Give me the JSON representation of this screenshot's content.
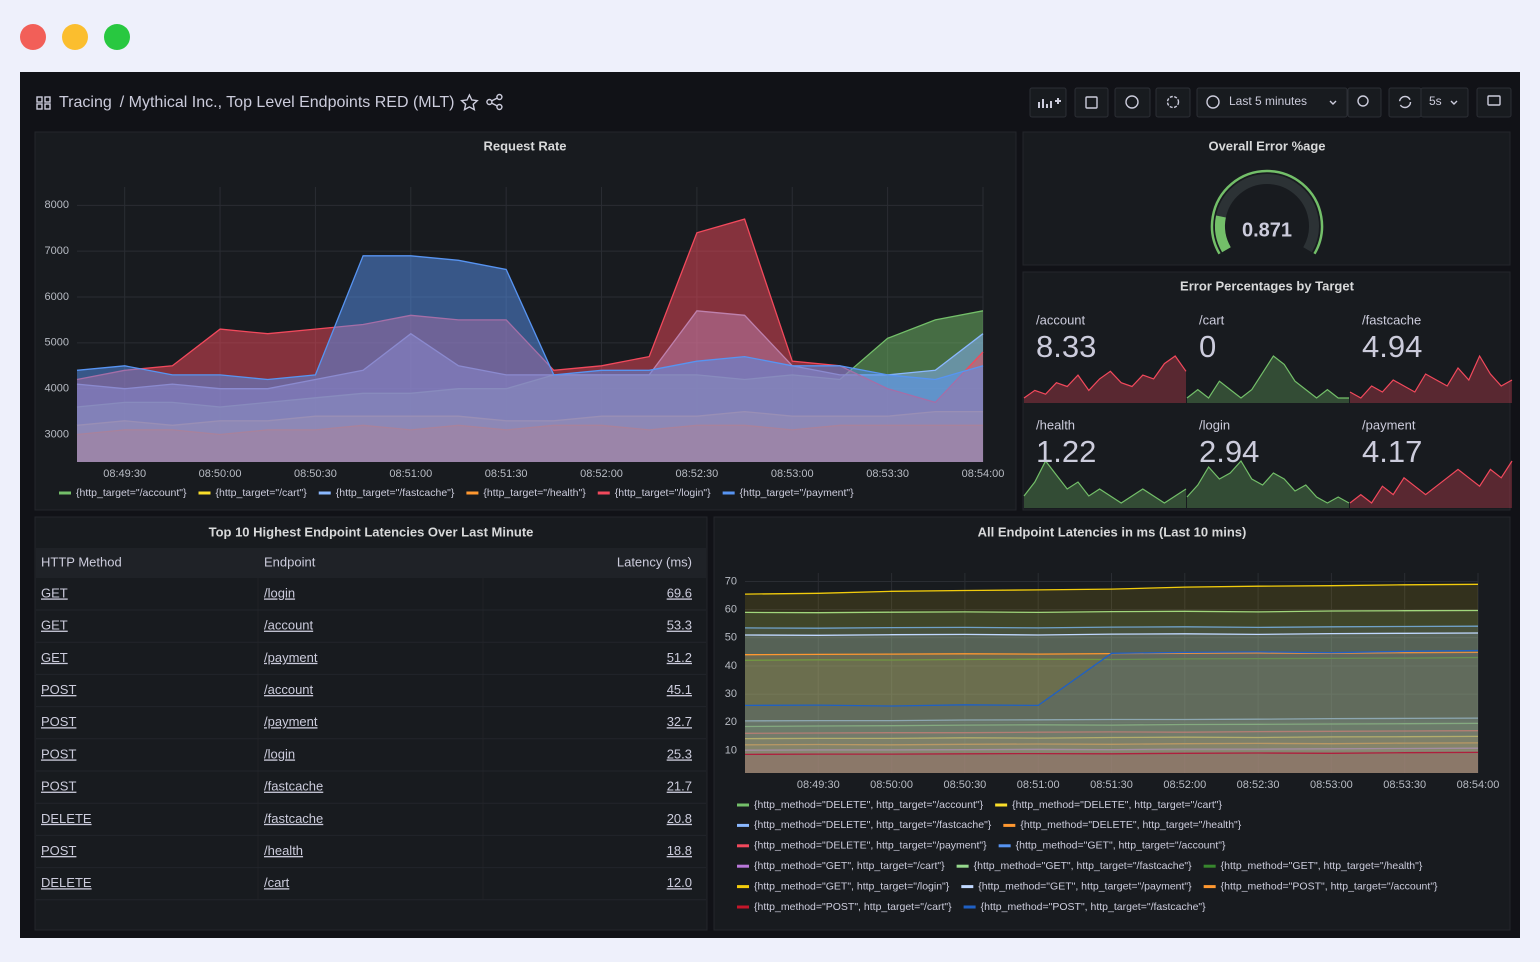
{
  "header": {
    "section": "Tracing",
    "title": "/ Mythical Inc., Top Level Endpoints RED (MLT)",
    "time_range": "Last 5 minutes",
    "refresh": "5s"
  },
  "chart_data": [
    {
      "type": "area",
      "title": "Request Rate",
      "x": [
        "08:49:15",
        "08:49:30",
        "08:49:45",
        "08:50:00",
        "08:50:15",
        "08:50:30",
        "08:50:45",
        "08:51:00",
        "08:51:15",
        "08:51:30",
        "08:51:45",
        "08:52:00",
        "08:52:15",
        "08:52:30",
        "08:52:45",
        "08:53:00",
        "08:53:15",
        "08:53:30",
        "08:53:45",
        "08:54:00"
      ],
      "xlim": [
        "08:49:15",
        "08:54:00"
      ],
      "xticks": [
        "08:49:30",
        "08:50:00",
        "08:50:30",
        "08:51:00",
        "08:51:30",
        "08:52:00",
        "08:52:30",
        "08:53:00",
        "08:53:30",
        "08:54:00"
      ],
      "ylim": [
        2400,
        8400
      ],
      "yticks": [
        3000,
        4000,
        5000,
        6000,
        7000,
        8000
      ],
      "grid": true,
      "legend": "bottom",
      "series": [
        {
          "name": "{http_target=\"/account\"}",
          "color": "#73bf69",
          "values": [
            3600,
            3700,
            3700,
            3600,
            3700,
            3800,
            3900,
            3900,
            4000,
            4000,
            4300,
            4300,
            4300,
            4300,
            4200,
            4300,
            4200,
            5100,
            5500,
            5700
          ]
        },
        {
          "name": "{http_target=\"/cart\"}",
          "color": "#fade2a",
          "values": [
            3200,
            3300,
            3200,
            3300,
            3300,
            3400,
            3400,
            3400,
            3400,
            3300,
            3300,
            3400,
            3400,
            3400,
            3500,
            3400,
            3400,
            3400,
            3500,
            3500
          ]
        },
        {
          "name": "{http_target=\"/fastcache\"}",
          "color": "#8ab8ff",
          "values": [
            4100,
            4000,
            4100,
            4000,
            4000,
            4200,
            4400,
            5200,
            4500,
            4300,
            4300,
            4300,
            4300,
            5700,
            5600,
            4500,
            4300,
            4300,
            4400,
            5200
          ]
        },
        {
          "name": "{http_target=\"/health\"}",
          "color": "#ff9830",
          "values": [
            3000,
            3100,
            3100,
            3000,
            3100,
            3100,
            3200,
            3100,
            3200,
            3100,
            3200,
            3200,
            3100,
            3200,
            3200,
            3100,
            3200,
            3200,
            3200,
            3200
          ]
        },
        {
          "name": "{http_target=\"/login\"}",
          "color": "#f2495c",
          "values": [
            4200,
            4400,
            4500,
            5300,
            5200,
            5300,
            5400,
            5600,
            5500,
            5500,
            4400,
            4500,
            4700,
            7400,
            7700,
            4600,
            4500,
            4000,
            3700,
            4800
          ]
        },
        {
          "name": "{http_target=\"/payment\"}",
          "color": "#5794f2",
          "values": [
            4400,
            4500,
            4300,
            4300,
            4200,
            4300,
            6900,
            6900,
            6800,
            6600,
            4300,
            4400,
            4400,
            4600,
            4700,
            4500,
            4500,
            4300,
            4200,
            4500
          ]
        }
      ]
    },
    {
      "type": "gauge",
      "title": "Overall Error %age",
      "value": 0.871,
      "range": [
        0,
        5
      ],
      "color": "#73bf69"
    },
    {
      "type": "stat",
      "title": "Error Percentages by Target",
      "items": [
        {
          "name": "/account",
          "value": 8.33,
          "color": "#f2495c",
          "sparkline": [
            3,
            5,
            4,
            7,
            6,
            9,
            5,
            8,
            10,
            7,
            6,
            9,
            8,
            12,
            14,
            10
          ]
        },
        {
          "name": "/cart",
          "value": 0,
          "color": "#73bf69",
          "sparkline": [
            2,
            3,
            2,
            4,
            3,
            2,
            3,
            5,
            7,
            6,
            4,
            3,
            2,
            3,
            2,
            2
          ]
        },
        {
          "name": "/fastcache",
          "value": 4.94,
          "color": "#f2495c",
          "sparkline": [
            3,
            2,
            4,
            3,
            5,
            4,
            3,
            6,
            5,
            4,
            7,
            5,
            9,
            6,
            4,
            5
          ]
        },
        {
          "name": "/health",
          "value": 1.22,
          "color": "#73bf69",
          "sparkline": [
            3,
            5,
            8,
            6,
            4,
            5,
            3,
            4,
            3,
            2,
            3,
            4,
            3,
            2,
            3,
            4
          ]
        },
        {
          "name": "/login",
          "value": 2.94,
          "color": "#73bf69",
          "sparkline": [
            4,
            6,
            9,
            7,
            8,
            10,
            7,
            6,
            8,
            7,
            5,
            6,
            4,
            3,
            4,
            3
          ]
        },
        {
          "name": "/payment",
          "value": 4.17,
          "color": "#f2495c",
          "sparkline": [
            2,
            3,
            2,
            4,
            3,
            5,
            4,
            3,
            4,
            5,
            6,
            5,
            4,
            6,
            5,
            7
          ]
        }
      ]
    },
    {
      "type": "area",
      "title": "All Endpoint Latencies in ms (Last 10 mins)",
      "x": [
        "08:49:00",
        "08:49:30",
        "08:50:00",
        "08:50:30",
        "08:51:00",
        "08:51:30",
        "08:52:00",
        "08:52:30",
        "08:53:00",
        "08:53:30",
        "08:54:00"
      ],
      "xlim": [
        "08:49:00",
        "08:54:00"
      ],
      "xticks": [
        "08:49:30",
        "08:50:00",
        "08:50:30",
        "08:51:00",
        "08:51:30",
        "08:52:00",
        "08:52:30",
        "08:53:00",
        "08:53:30",
        "08:54:00"
      ],
      "ylim": [
        2,
        73
      ],
      "yticks": [
        10,
        20,
        30,
        40,
        50,
        60,
        70
      ],
      "grid": true,
      "legend": "bottom",
      "series": [
        {
          "name": "{http_method=\"DELETE\", http_target=\"/account\"}",
          "color": "#73bf69",
          "values": [
            18.5,
            18.7,
            18.8,
            19.0,
            19.1,
            19.0,
            19.2,
            19.3,
            19.4,
            19.5,
            19.6
          ]
        },
        {
          "name": "{http_method=\"DELETE\", http_target=\"/cart\"}",
          "color": "#fade2a",
          "values": [
            14.2,
            14.3,
            14.3,
            14.5,
            14.4,
            14.6,
            14.7,
            14.6,
            14.8,
            14.9,
            15.0
          ]
        },
        {
          "name": "{http_method=\"DELETE\", http_target=\"/fastcache\"}",
          "color": "#8ab8ff",
          "values": [
            20.5,
            20.6,
            20.6,
            20.8,
            20.9,
            21.0,
            21.0,
            21.1,
            21.3,
            21.4,
            21.5
          ]
        },
        {
          "name": "{http_method=\"DELETE\", http_target=\"/health\"}",
          "color": "#ff9830",
          "values": [
            12.0,
            12.1,
            12.0,
            12.2,
            12.3,
            12.2,
            12.4,
            12.5,
            12.4,
            12.6,
            12.7
          ]
        },
        {
          "name": "{http_method=\"DELETE\", http_target=\"/payment\"}",
          "color": "#f2495c",
          "values": [
            16.1,
            16.2,
            16.3,
            16.3,
            16.5,
            16.6,
            16.5,
            16.7,
            16.8,
            16.9,
            17.0
          ]
        },
        {
          "name": "{http_method=\"GET\", http_target=\"/account\"}",
          "color": "#5794f2",
          "values": [
            53.5,
            53.4,
            53.6,
            53.7,
            53.5,
            53.8,
            53.9,
            53.7,
            53.9,
            54.0,
            54.1
          ]
        },
        {
          "name": "{http_method=\"GET\", http_target=\"/cart\"}",
          "color": "#b877d9",
          "values": [
            10.1,
            10.2,
            10.2,
            10.3,
            10.4,
            10.3,
            10.5,
            10.5,
            10.6,
            10.7,
            10.8
          ]
        },
        {
          "name": "{http_method=\"GET\", http_target=\"/fastcache\"}",
          "color": "#96d98d",
          "values": [
            59.0,
            58.9,
            59.1,
            59.2,
            59.0,
            59.3,
            59.4,
            59.2,
            59.5,
            59.6,
            59.7
          ]
        },
        {
          "name": "{http_method=\"GET\", http_target=\"/health\"}",
          "color": "#37872d",
          "values": [
            42.0,
            42.2,
            42.1,
            42.3,
            42.4,
            42.3,
            42.5,
            42.6,
            42.7,
            42.8,
            43.0
          ]
        },
        {
          "name": "{http_method=\"GET\", http_target=\"/login\"}",
          "color": "#f2cc0c",
          "values": [
            65.5,
            65.8,
            66.5,
            66.8,
            67.0,
            67.3,
            68.0,
            68.3,
            68.5,
            68.8,
            69.0
          ]
        },
        {
          "name": "{http_method=\"GET\", http_target=\"/payment\"}",
          "color": "#c0d8ff",
          "values": [
            51.0,
            50.9,
            51.1,
            51.2,
            51.0,
            51.3,
            51.4,
            51.2,
            51.5,
            51.6,
            51.7
          ]
        },
        {
          "name": "{http_method=\"POST\", http_target=\"/account\"}",
          "color": "#ff9830",
          "values": [
            44.0,
            44.1,
            44.2,
            44.3,
            44.2,
            44.4,
            44.5,
            44.6,
            44.5,
            44.7,
            44.8
          ]
        },
        {
          "name": "{http_method=\"POST\", http_target=\"/cart\"}",
          "color": "#c4162a",
          "values": [
            8.6,
            8.7,
            8.7,
            8.8,
            8.9,
            8.8,
            9.0,
            9.1,
            9.0,
            9.2,
            9.3
          ]
        },
        {
          "name": "{http_method=\"POST\", http_target=\"/fastcache\"}",
          "color": "#1f60c4",
          "values": [
            26.0,
            26.1,
            25.8,
            26.2,
            26.0,
            44.5,
            44.8,
            45.0,
            44.7,
            45.2,
            45.5
          ]
        }
      ]
    }
  ],
  "table": {
    "title": "Top 10 Highest Endpoint Latencies Over Last Minute",
    "columns": [
      "HTTP Method",
      "Endpoint",
      "Latency (ms)"
    ],
    "rows": [
      [
        "GET",
        "/login",
        "69.6"
      ],
      [
        "GET",
        "/account",
        "53.3"
      ],
      [
        "GET",
        "/payment",
        "51.2"
      ],
      [
        "POST",
        "/account",
        "45.1"
      ],
      [
        "POST",
        "/payment",
        "32.7"
      ],
      [
        "POST",
        "/login",
        "25.3"
      ],
      [
        "POST",
        "/fastcache",
        "21.7"
      ],
      [
        "DELETE",
        "/fastcache",
        "20.8"
      ],
      [
        "POST",
        "/health",
        "18.8"
      ],
      [
        "DELETE",
        "/cart",
        "12.0"
      ]
    ]
  }
}
